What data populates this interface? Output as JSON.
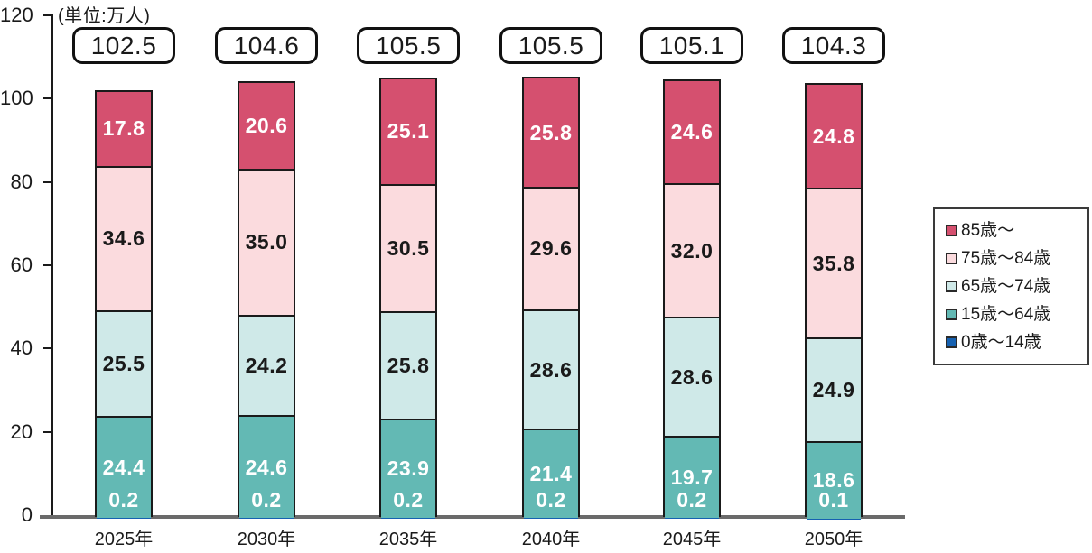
{
  "chart_data": {
    "type": "bar",
    "stacked": true,
    "unit_label": "(単位:万人)",
    "categories": [
      "2025年",
      "2030年",
      "2035年",
      "2040年",
      "2045年",
      "2050年"
    ],
    "totals": [
      "102.5",
      "104.6",
      "105.5",
      "105.5",
      "105.1",
      "104.3"
    ],
    "series": [
      {
        "name": "0歳〜14歳",
        "color": "#1661b1",
        "label_color": "#ffffff",
        "values": [
          0.2,
          0.2,
          0.2,
          0.2,
          0.2,
          0.1
        ]
      },
      {
        "name": "15歳〜64歳",
        "color": "#63b9b4",
        "label_color": "#ffffff",
        "values": [
          24.4,
          24.6,
          23.9,
          21.4,
          19.7,
          18.6
        ]
      },
      {
        "name": "65歳〜74歳",
        "color": "#cfe9e8",
        "label_color": "#1a1a1a",
        "values": [
          25.5,
          24.2,
          25.8,
          28.6,
          28.6,
          24.9
        ]
      },
      {
        "name": "75歳〜84歳",
        "color": "#fbdbde",
        "label_color": "#1a1a1a",
        "values": [
          34.6,
          35.0,
          30.5,
          29.6,
          32.0,
          35.8
        ]
      },
      {
        "name": "85歳〜",
        "color": "#d5506f",
        "label_color": "#ffffff",
        "values": [
          17.8,
          20.6,
          25.1,
          25.8,
          24.6,
          24.8
        ]
      }
    ],
    "legend_order_top_to_bottom": [
      "85歳〜",
      "75歳〜84歳",
      "65歳〜74歳",
      "15歳〜64歳",
      "0歳〜14歳"
    ],
    "legend_position": "right",
    "y_ticks": [
      0,
      20,
      40,
      60,
      80,
      100,
      120
    ],
    "ylim": [
      0,
      120
    ],
    "xlabel": "",
    "ylabel": "",
    "title": ""
  }
}
